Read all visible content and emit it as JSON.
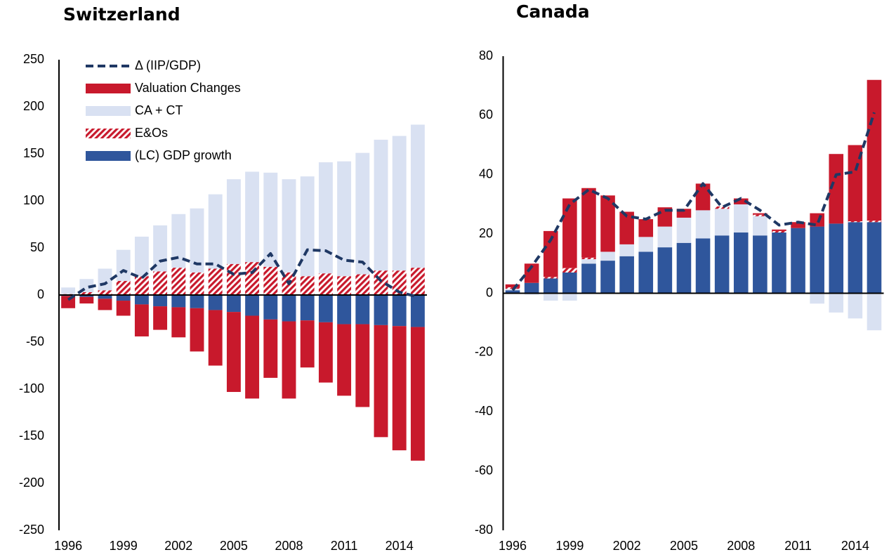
{
  "chart_data": [
    {
      "type": "stacked-bar",
      "title": "Switzerland",
      "categories": [
        "1996",
        null,
        null,
        "1999",
        null,
        null,
        "2002",
        null,
        null,
        "2005",
        null,
        null,
        "2008",
        null,
        null,
        "2011",
        null,
        null,
        "2014",
        null
      ],
      "ylim": [
        -250,
        250
      ],
      "yticks": [
        -250,
        -200,
        -150,
        -100,
        -50,
        0,
        50,
        100,
        150,
        200,
        250
      ],
      "legend": "upper left",
      "series": [
        {
          "name": "(LC) GDP growth",
          "color": "#2f569c",
          "values": [
            -1,
            -2,
            -4,
            -6,
            -10,
            -12,
            -13,
            -14,
            -16,
            -18,
            -22,
            -26,
            -28,
            -27,
            -29,
            -31,
            -31,
            -32,
            -33,
            -34
          ]
        },
        {
          "name": "E&Os",
          "color": "#c8192c",
          "hatch": true,
          "values": [
            1,
            3,
            5,
            15,
            20,
            25,
            29,
            24,
            28,
            33,
            35,
            30,
            24,
            20,
            23,
            20,
            22,
            26,
            26,
            29
          ]
        },
        {
          "name": "CA + CT",
          "color": "#d9e1f2",
          "values": [
            7,
            14,
            23,
            33,
            42,
            49,
            57,
            68,
            79,
            90,
            96,
            100,
            99,
            106,
            118,
            122,
            129,
            139,
            143,
            152
          ]
        },
        {
          "name": "Valuation Changes",
          "color": "#c8192c",
          "values": [
            -13,
            -7,
            -12,
            -16,
            -34,
            -25,
            -32,
            -46,
            -59,
            -85,
            -88,
            -62,
            -82,
            -50,
            -64,
            -76,
            -88,
            -119,
            -132,
            -142
          ]
        },
        {
          "name": "Δ (IIP/GDP)",
          "type": "line",
          "color": "#1f3864",
          "values": [
            -5,
            8,
            12,
            26,
            18,
            36,
            40,
            33,
            33,
            22,
            24,
            44,
            12,
            48,
            47,
            37,
            35,
            15,
            3,
            -2
          ]
        }
      ]
    },
    {
      "type": "stacked-bar",
      "title": "Canada",
      "categories": [
        "1996",
        null,
        null,
        "1999",
        null,
        null,
        "2002",
        null,
        null,
        "2005",
        null,
        null,
        "2008",
        null,
        null,
        "2011",
        null,
        null,
        "2014",
        null
      ],
      "ylim": [
        -80,
        80
      ],
      "yticks": [
        -80,
        -60,
        -40,
        -20,
        0,
        20,
        40,
        60,
        80
      ],
      "series": [
        {
          "name": "(LC) GDP growth",
          "color": "#2f569c",
          "values": [
            1,
            3.5,
            5,
            7,
            10,
            11,
            12.5,
            14,
            15.5,
            17,
            18.5,
            19.5,
            20.5,
            19.5,
            20.5,
            22,
            22.5,
            23.5,
            24,
            24
          ]
        },
        {
          "name": "CA + CT",
          "color": "#d9e1f2",
          "values": [
            0.5,
            -0.5,
            -2.5,
            -2.5,
            1.5,
            3,
            4,
            5,
            7,
            8.5,
            9.5,
            9,
            9.5,
            6.5,
            0,
            0,
            -3.5,
            -6.5,
            -8.5,
            -12.5
          ]
        },
        {
          "name": "E&Os",
          "color": "#c8192c",
          "hatch": true,
          "values": [
            0.5,
            0,
            0.5,
            1.5,
            0.5,
            0,
            0,
            0,
            0,
            0,
            0,
            0.8,
            0,
            0.5,
            0.5,
            0,
            0,
            0,
            0.3,
            0.5
          ]
        },
        {
          "name": "Valuation Changes",
          "color": "#c8192c",
          "values": [
            1,
            6.5,
            15.5,
            23.5,
            23.5,
            19,
            11,
            6,
            6.5,
            3,
            9,
            0,
            2,
            0.5,
            0.5,
            2,
            4.5,
            23.5,
            25.7,
            47.5
          ]
        },
        {
          "name": "Δ (IIP/GDP)",
          "type": "line",
          "color": "#1f3864",
          "values": [
            1,
            9,
            18,
            30,
            35,
            32,
            26,
            25,
            28,
            28,
            37,
            29,
            32,
            28,
            23,
            24,
            23,
            40,
            41,
            61
          ]
        }
      ]
    }
  ]
}
